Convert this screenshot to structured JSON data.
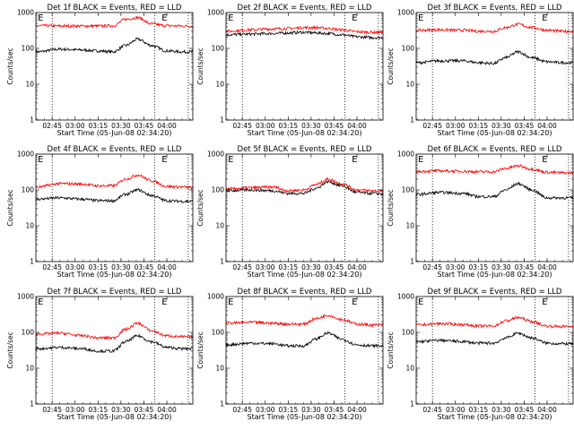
{
  "figure": {
    "background": "#ffffff"
  },
  "chart_data": [
    {
      "type": "line",
      "title": "Det 1f BLACK = Events, RED = LLD",
      "xlabel": "Start Time (05-Jun-08 02:34:20)",
      "ylabel": "Counts/sec",
      "yscale": "log",
      "ylim": [
        1,
        1000
      ],
      "xlim": [
        "02:34:20",
        "04:17:00"
      ],
      "x_tick_labels": [
        "02:45",
        "03:00",
        "03:15",
        "03:30",
        "03:45",
        "04:00"
      ],
      "y_tick_labels": [
        "1",
        "10",
        "100",
        "1000"
      ],
      "vertical_dotted_lines": [
        "02:45",
        "03:52",
        "04:14"
      ],
      "flags": [
        {
          "at": "02:35",
          "text": "E"
        },
        {
          "at": "03:56",
          "text": "E"
        }
      ],
      "x": [
        "02:35",
        "02:50",
        "03:05",
        "03:15",
        "03:25",
        "03:33",
        "03:41",
        "03:50",
        "04:00",
        "04:10",
        "04:17"
      ],
      "series": [
        {
          "name": "Events",
          "color": "#000000",
          "values": [
            80,
            95,
            90,
            85,
            80,
            120,
            180,
            120,
            85,
            80,
            80
          ]
        },
        {
          "name": "LLD",
          "color": "#ff0000",
          "values": [
            430,
            420,
            420,
            420,
            430,
            650,
            720,
            480,
            430,
            420,
            420
          ]
        }
      ]
    },
    {
      "type": "line",
      "title": "Det 2f BLACK = Events, RED = LLD",
      "xlabel": "Start Time (05-Jun-08 02:34:20)",
      "ylabel": "Counts/sec",
      "yscale": "log",
      "ylim": [
        1,
        1000
      ],
      "xlim": [
        "02:34:20",
        "04:17:00"
      ],
      "x_tick_labels": [
        "02:45",
        "03:00",
        "03:15",
        "03:30",
        "03:45",
        "04:00"
      ],
      "y_tick_labels": [
        "1",
        "10",
        "100",
        "1000"
      ],
      "vertical_dotted_lines": [
        "02:45",
        "03:52",
        "04:14"
      ],
      "flags": [
        {
          "at": "02:35",
          "text": "E"
        },
        {
          "at": "03:56",
          "text": "E"
        }
      ],
      "x": [
        "02:35",
        "02:50",
        "03:05",
        "03:15",
        "03:25",
        "03:33",
        "03:41",
        "03:50",
        "04:00",
        "04:10",
        "04:17"
      ],
      "series": [
        {
          "name": "Events",
          "color": "#000000",
          "values": [
            240,
            250,
            260,
            270,
            280,
            270,
            260,
            240,
            210,
            200,
            200
          ]
        },
        {
          "name": "LLD",
          "color": "#ff0000",
          "values": [
            300,
            330,
            350,
            360,
            380,
            380,
            360,
            330,
            290,
            280,
            280
          ]
        }
      ]
    },
    {
      "type": "line",
      "title": "Det 3f BLACK = Events, RED = LLD",
      "xlabel": "Start Time (05-Jun-08 02:34:20)",
      "ylabel": "Counts/sec",
      "yscale": "log",
      "ylim": [
        1,
        1000
      ],
      "xlim": [
        "02:34:20",
        "04:17:00"
      ],
      "x_tick_labels": [
        "02:45",
        "03:00",
        "03:15",
        "03:30",
        "03:45",
        "04:00"
      ],
      "y_tick_labels": [
        "1",
        "10",
        "100",
        "1000"
      ],
      "vertical_dotted_lines": [
        "02:45",
        "03:52",
        "04:14"
      ],
      "flags": [
        {
          "at": "02:35",
          "text": "E"
        },
        {
          "at": "03:56",
          "text": "E"
        }
      ],
      "x": [
        "02:35",
        "02:50",
        "03:05",
        "03:15",
        "03:25",
        "03:33",
        "03:41",
        "03:50",
        "04:00",
        "04:10",
        "04:17"
      ],
      "series": [
        {
          "name": "Events",
          "color": "#000000",
          "values": [
            40,
            45,
            45,
            40,
            38,
            55,
            80,
            55,
            42,
            40,
            40
          ]
        },
        {
          "name": "LLD",
          "color": "#ff0000",
          "values": [
            320,
            330,
            320,
            300,
            300,
            380,
            470,
            380,
            320,
            300,
            300
          ]
        }
      ]
    },
    {
      "type": "line",
      "title": "Det 4f BLACK = Events, RED = LLD",
      "xlabel": "Start Time (05-Jun-08 02:34:20)",
      "ylabel": "Counts/sec",
      "yscale": "log",
      "ylim": [
        1,
        1000
      ],
      "xlim": [
        "02:34:20",
        "04:17:00"
      ],
      "x_tick_labels": [
        "02:45",
        "03:00",
        "03:15",
        "03:30",
        "03:45",
        "04:00"
      ],
      "y_tick_labels": [
        "1",
        "10",
        "100",
        "1000"
      ],
      "vertical_dotted_lines": [
        "02:45",
        "03:52",
        "04:14"
      ],
      "flags": [
        {
          "at": "02:35",
          "text": "E"
        },
        {
          "at": "03:56",
          "text": "E"
        }
      ],
      "x": [
        "02:35",
        "02:50",
        "03:05",
        "03:15",
        "03:25",
        "03:33",
        "03:41",
        "03:50",
        "04:00",
        "04:10",
        "04:17"
      ],
      "series": [
        {
          "name": "Events",
          "color": "#000000",
          "values": [
            55,
            60,
            55,
            50,
            50,
            75,
            100,
            70,
            50,
            48,
            48
          ]
        },
        {
          "name": "LLD",
          "color": "#ff0000",
          "values": [
            120,
            150,
            145,
            130,
            130,
            200,
            260,
            180,
            125,
            120,
            115
          ]
        }
      ]
    },
    {
      "type": "line",
      "title": "Det 5f BLACK = Events, RED = LLD",
      "xlabel": "Start Time (05-Jun-08 02:34:20)",
      "ylabel": "Counts/sec",
      "yscale": "log",
      "ylim": [
        1,
        1000
      ],
      "xlim": [
        "02:34:20",
        "04:17:00"
      ],
      "x_tick_labels": [
        "02:45",
        "03:00",
        "03:15",
        "03:30",
        "03:45",
        "04:00"
      ],
      "y_tick_labels": [
        "1",
        "10",
        "100",
        "1000"
      ],
      "vertical_dotted_lines": [
        "02:45",
        "03:52",
        "04:14"
      ],
      "flags": [
        {
          "at": "02:35",
          "text": "E"
        },
        {
          "at": "03:56",
          "text": "E"
        }
      ],
      "x": [
        "02:35",
        "02:50",
        "03:05",
        "03:15",
        "03:25",
        "03:33",
        "03:41",
        "03:50",
        "04:00",
        "04:10",
        "04:17"
      ],
      "series": [
        {
          "name": "Events",
          "color": "#000000",
          "values": [
            95,
            100,
            95,
            80,
            80,
            110,
            170,
            130,
            85,
            80,
            78
          ]
        },
        {
          "name": "LLD",
          "color": "#ff0000",
          "values": [
            105,
            115,
            120,
            95,
            100,
            140,
            200,
            150,
            100,
            95,
            95
          ]
        }
      ]
    },
    {
      "type": "line",
      "title": "Det 6f BLACK = Events, RED = LLD",
      "xlabel": "Start Time (05-Jun-08 02:34:20)",
      "ylabel": "Counts/sec",
      "yscale": "log",
      "ylim": [
        1,
        1000
      ],
      "xlim": [
        "02:34:20",
        "04:17:00"
      ],
      "x_tick_labels": [
        "02:45",
        "03:00",
        "03:15",
        "03:30",
        "03:45",
        "04:00"
      ],
      "y_tick_labels": [
        "1",
        "10",
        "100",
        "1000"
      ],
      "vertical_dotted_lines": [
        "02:45",
        "03:52",
        "04:14"
      ],
      "flags": [
        {
          "at": "02:35",
          "text": "E"
        },
        {
          "at": "03:56",
          "text": "E"
        }
      ],
      "x": [
        "02:35",
        "02:50",
        "03:05",
        "03:15",
        "03:25",
        "03:33",
        "03:41",
        "03:50",
        "04:00",
        "04:10",
        "04:17"
      ],
      "series": [
        {
          "name": "Events",
          "color": "#000000",
          "values": [
            75,
            85,
            80,
            65,
            65,
            100,
            150,
            100,
            60,
            60,
            60
          ]
        },
        {
          "name": "LLD",
          "color": "#ff0000",
          "values": [
            330,
            340,
            330,
            320,
            320,
            400,
            470,
            380,
            310,
            300,
            300
          ]
        }
      ]
    },
    {
      "type": "line",
      "title": "Det 7f BLACK = Events, RED = LLD",
      "xlabel": "Start Time (05-Jun-08 02:34:20)",
      "ylabel": "Counts/sec",
      "yscale": "log",
      "ylim": [
        1,
        1000
      ],
      "xlim": [
        "02:34:20",
        "04:17:00"
      ],
      "x_tick_labels": [
        "02:45",
        "03:00",
        "03:15",
        "03:30",
        "03:45",
        "04:00"
      ],
      "y_tick_labels": [
        "1",
        "10",
        "100",
        "1000"
      ],
      "vertical_dotted_lines": [
        "02:45",
        "03:52",
        "04:14"
      ],
      "flags": [
        {
          "at": "02:35",
          "text": "E"
        },
        {
          "at": "03:56",
          "text": "E"
        }
      ],
      "x": [
        "02:35",
        "02:50",
        "03:05",
        "03:15",
        "03:25",
        "03:33",
        "03:41",
        "03:50",
        "04:00",
        "04:10",
        "04:17"
      ],
      "series": [
        {
          "name": "Events",
          "color": "#000000",
          "values": [
            35,
            38,
            35,
            30,
            30,
            55,
            80,
            55,
            38,
            35,
            35
          ]
        },
        {
          "name": "LLD",
          "color": "#ff0000",
          "values": [
            90,
            95,
            80,
            70,
            70,
            120,
            180,
            110,
            80,
            75,
            75
          ]
        }
      ]
    },
    {
      "type": "line",
      "title": "Det 8f BLACK = Events, RED = LLD",
      "xlabel": "Start Time (05-Jun-08 02:34:20)",
      "ylabel": "Counts/sec",
      "yscale": "log",
      "ylim": [
        1,
        1000
      ],
      "xlim": [
        "02:34:20",
        "04:17:00"
      ],
      "x_tick_labels": [
        "02:45",
        "03:00",
        "03:15",
        "03:30",
        "03:45",
        "04:00"
      ],
      "y_tick_labels": [
        "1",
        "10",
        "100",
        "1000"
      ],
      "vertical_dotted_lines": [
        "02:45",
        "03:52",
        "04:14"
      ],
      "flags": [
        {
          "at": "02:35",
          "text": "E"
        },
        {
          "at": "03:56",
          "text": "E"
        }
      ],
      "x": [
        "02:35",
        "02:50",
        "03:05",
        "03:15",
        "03:25",
        "03:33",
        "03:41",
        "03:50",
        "04:00",
        "04:10",
        "04:17"
      ],
      "series": [
        {
          "name": "Events",
          "color": "#000000",
          "values": [
            45,
            50,
            48,
            42,
            42,
            65,
            95,
            65,
            45,
            42,
            42
          ]
        },
        {
          "name": "LLD",
          "color": "#ff0000",
          "values": [
            180,
            190,
            180,
            170,
            170,
            240,
            300,
            230,
            170,
            160,
            160
          ]
        }
      ]
    },
    {
      "type": "line",
      "title": "Det 9f BLACK = Events, RED = LLD",
      "xlabel": "Start Time (05-Jun-08 02:34:20)",
      "ylabel": "Counts/sec",
      "yscale": "log",
      "ylim": [
        1,
        1000
      ],
      "xlim": [
        "02:34:20",
        "04:17:00"
      ],
      "x_tick_labels": [
        "02:45",
        "03:00",
        "03:15",
        "03:30",
        "03:45",
        "04:00"
      ],
      "y_tick_labels": [
        "1",
        "10",
        "100",
        "1000"
      ],
      "vertical_dotted_lines": [
        "02:45",
        "03:52",
        "04:14"
      ],
      "flags": [
        {
          "at": "02:35",
          "text": "E"
        },
        {
          "at": "03:56",
          "text": "E"
        }
      ],
      "x": [
        "02:35",
        "02:50",
        "03:05",
        "03:15",
        "03:25",
        "03:33",
        "03:41",
        "03:50",
        "04:00",
        "04:10",
        "04:17"
      ],
      "series": [
        {
          "name": "Events",
          "color": "#000000",
          "values": [
            55,
            60,
            55,
            50,
            50,
            70,
            95,
            70,
            50,
            48,
            48
          ]
        },
        {
          "name": "LLD",
          "color": "#ff0000",
          "values": [
            160,
            175,
            165,
            150,
            150,
            210,
            260,
            200,
            150,
            145,
            145
          ]
        }
      ]
    }
  ]
}
